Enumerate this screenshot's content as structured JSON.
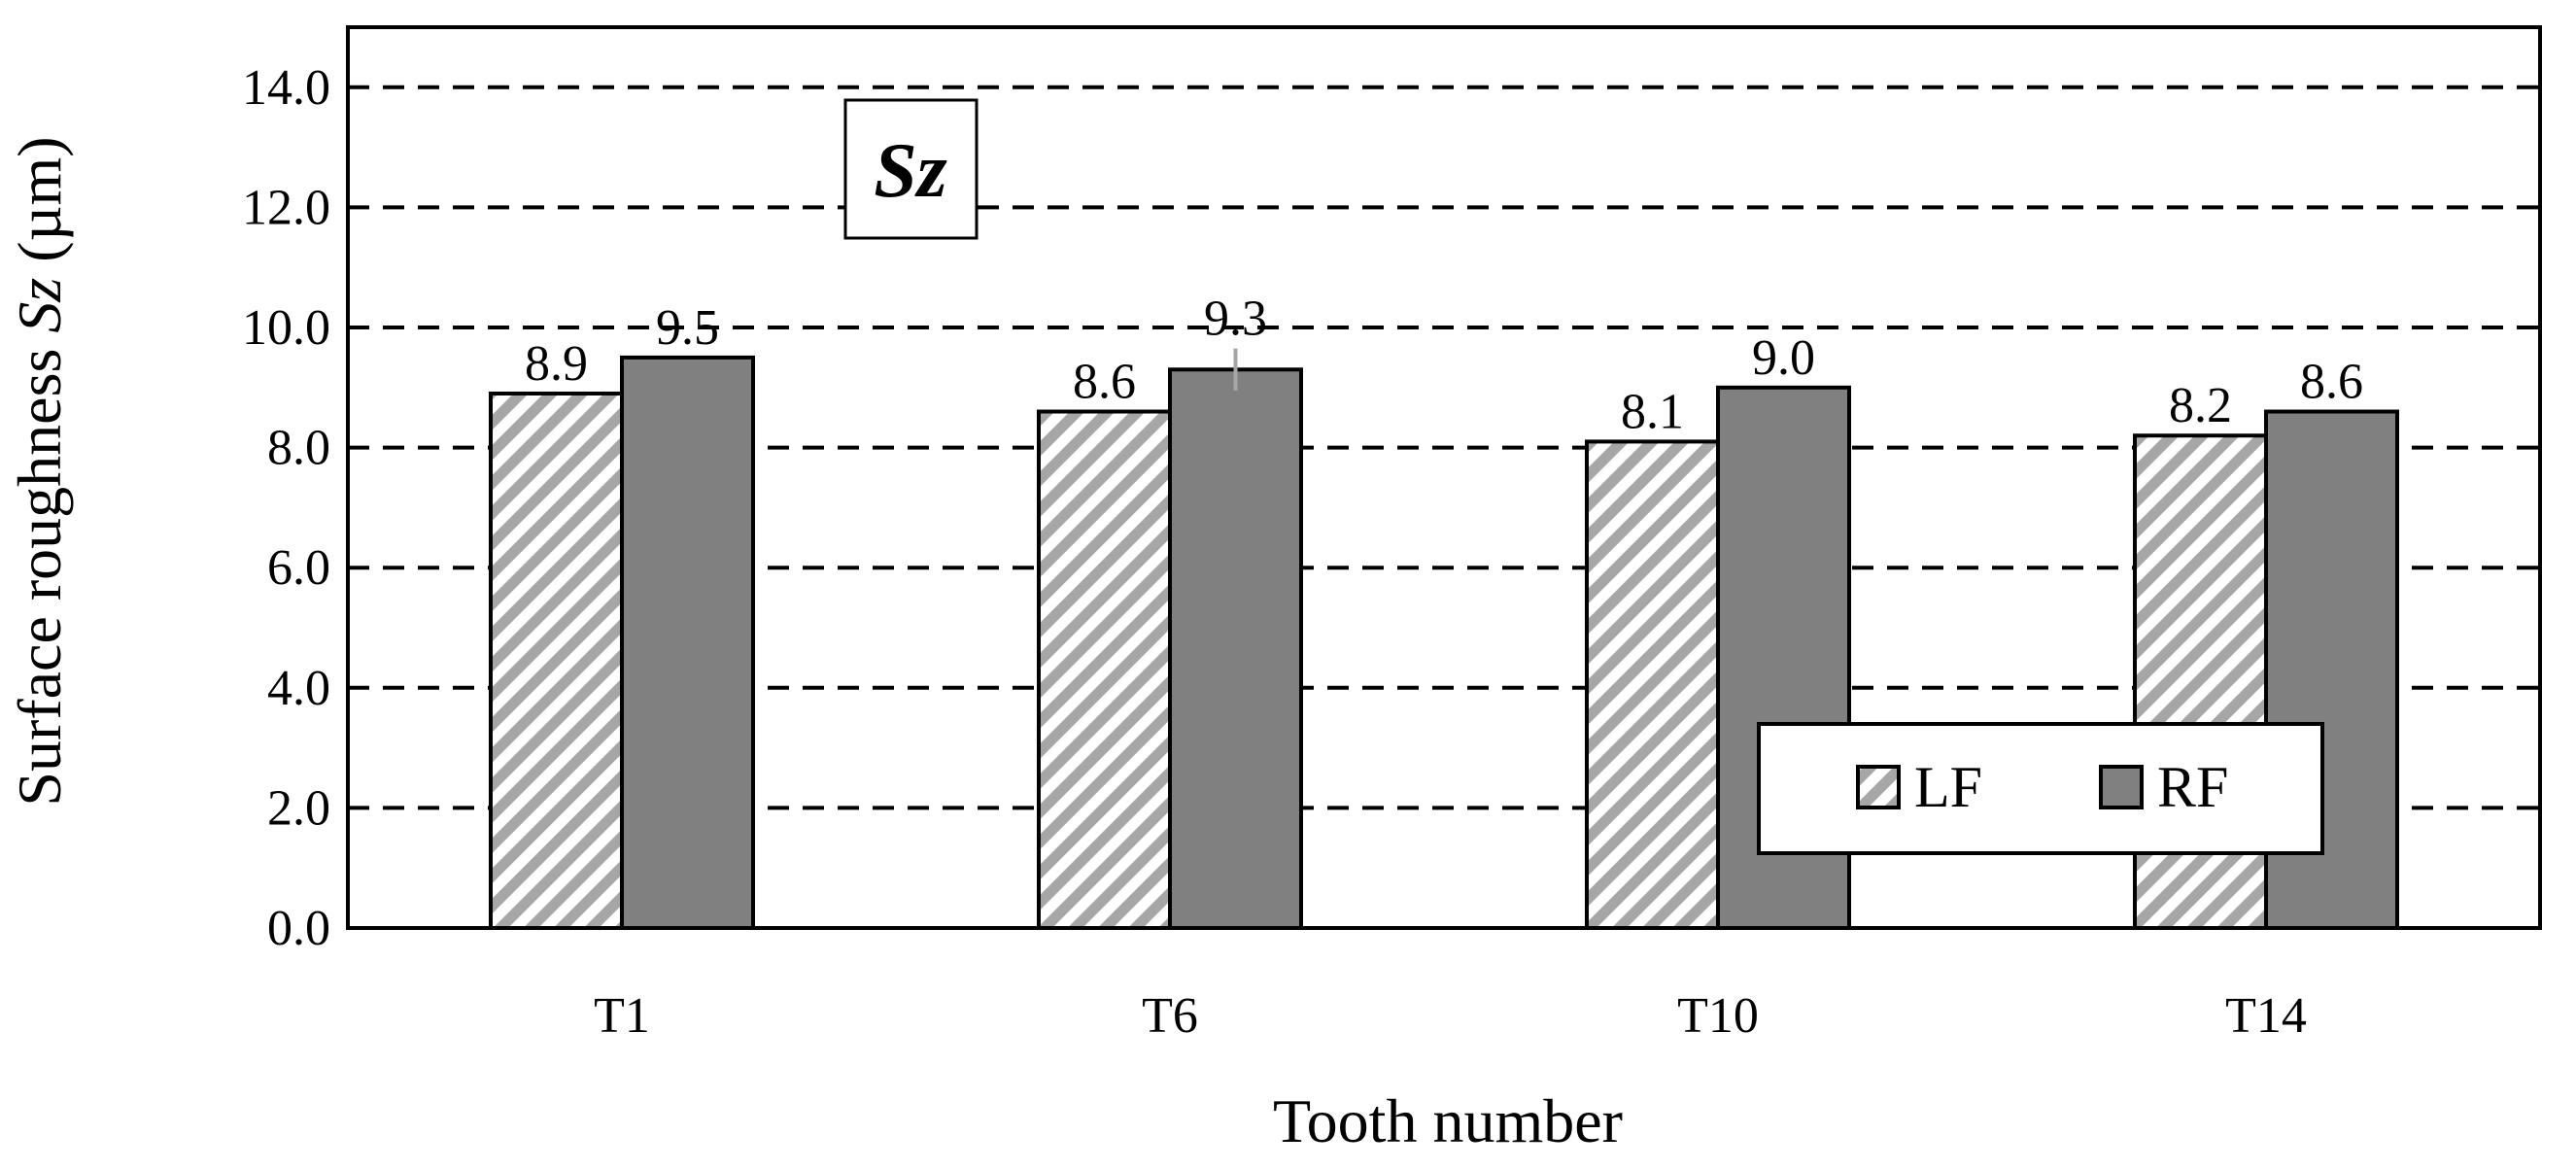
{
  "chart_data": {
    "type": "bar",
    "categories": [
      "T1",
      "T6",
      "T10",
      "T14"
    ],
    "series": [
      {
        "name": "LF",
        "values": [
          8.9,
          8.6,
          8.1,
          8.2
        ],
        "pattern": "hatched",
        "color": "#a6a6a6"
      },
      {
        "name": "RF",
        "values": [
          9.5,
          9.3,
          9.0,
          8.6
        ],
        "pattern": "solid",
        "color": "#808080"
      }
    ],
    "data_labels": {
      "LF": [
        "8.9",
        "8.6",
        "8.1",
        "8.2"
      ],
      "RF": [
        "9.5",
        "9.3",
        "9.0",
        "8.6"
      ]
    },
    "error_bars": {
      "RF": [
        0,
        0.7,
        0,
        0
      ]
    },
    "xlabel": "Tooth number",
    "ylabel": {
      "prefix": "Surface roughness ",
      "symbol": "Sz",
      "suffix": " (µm)"
    },
    "annotation": "Sz",
    "ylim": [
      0,
      15
    ],
    "yticks": [
      "0.0",
      "2.0",
      "4.0",
      "6.0",
      "8.0",
      "10.0",
      "12.0",
      "14.0"
    ],
    "grid": "horizontal-dashed",
    "legend_position": "bottom-right"
  }
}
